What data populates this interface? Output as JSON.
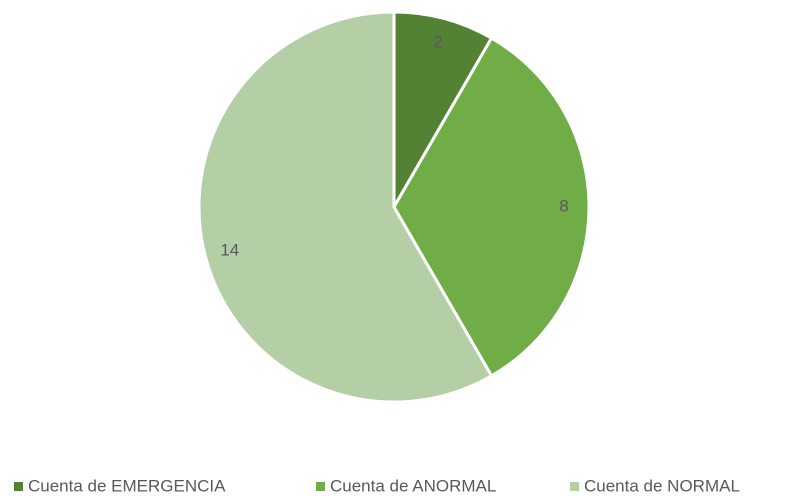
{
  "chart_data": {
    "type": "pie",
    "categories": [
      "Cuenta de EMERGENCIA",
      "Cuenta de ANORMAL",
      "Cuenta de NORMAL"
    ],
    "values": [
      2,
      8,
      14
    ],
    "colors": [
      "#548235",
      "#70ad47",
      "#b4cea6"
    ],
    "legend": "bottom"
  }
}
